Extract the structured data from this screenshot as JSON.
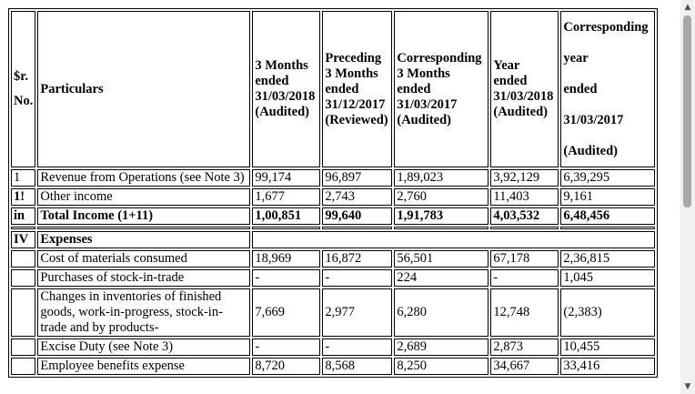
{
  "headers": {
    "srno": [
      "$r.",
      "No."
    ],
    "particulars": "Particulars",
    "col1": [
      "3 Months",
      "ended",
      "31/03/2018",
      "(Audited)"
    ],
    "col2": [
      "Preceding",
      "3 Months",
      "ended",
      "31/12/2017",
      "(Reviewed)"
    ],
    "col3": [
      "Corresponding",
      "3 Months",
      "ended",
      "31/03/2017",
      "(Audited)"
    ],
    "col4": [
      "Year",
      "ended",
      "31/03/2018",
      "(Audited)"
    ],
    "col5": [
      "Corresponding",
      "year",
      "ended",
      "31/03/2017",
      "(Audited)"
    ]
  },
  "rows": [
    {
      "sr": "1",
      "particular": "Revenue from Operations (see Note 3)",
      "values": [
        "99,174",
        "96,897",
        "1,89,023",
        "3,92,129",
        "6,39,295"
      ],
      "bold": false
    },
    {
      "sr": "1!",
      "particular": "Other income",
      "values": [
        "1,677",
        "2,743",
        "2,760",
        "11,403",
        "9,161"
      ],
      "bold": false
    },
    {
      "sr": "in",
      "particular": "Total Income (1+11)",
      "values": [
        "1,00,851",
        "99,640",
        "1,91,783",
        "4,03,532",
        "6,48,456"
      ],
      "bold": true
    },
    {
      "sr": "IV",
      "particular": "Expenses",
      "values": [],
      "section": true
    },
    {
      "sr": "",
      "particular": "Cost of materials consumed",
      "values": [
        "18,969",
        "16,872",
        "56,501",
        "67,178",
        "2,36,815"
      ],
      "bold": false
    },
    {
      "sr": "",
      "particular": "Purchases of stock-in-trade",
      "values": [
        "-",
        "-",
        "224",
        "-",
        "1,045"
      ],
      "bold": false
    },
    {
      "sr": "",
      "particular": "Changes in inventories of finished goods, work-in-progress, stock-in-trade and by products-",
      "values": [
        "7,669",
        "2,977",
        "6,280",
        "12,748",
        "(2,383)"
      ],
      "bold": false
    },
    {
      "sr": "",
      "particular": "Excise Duty (see Note 3)",
      "values": [
        "-",
        "-",
        "2,689",
        "2,873",
        "10,455"
      ],
      "bold": false
    },
    {
      "sr": "",
      "particular": "Employee benefits expense",
      "values": [
        "8,720",
        "8,568",
        "8,250",
        "34,667",
        "33,416"
      ],
      "bold": false
    }
  ],
  "scrollbar": {
    "up_icon": "▲",
    "down_icon": "▼"
  }
}
